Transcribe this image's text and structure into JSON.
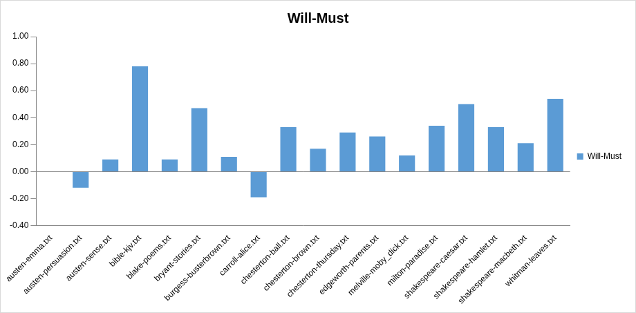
{
  "chart_data": {
    "type": "bar",
    "title": "Will-Must",
    "categories": [
      "austen-emma.txt",
      "austen-persuasion.txt",
      "austen-sense.txt",
      "bible-kjv.txt",
      "blake-poems.txt",
      "bryant-stories.txt",
      "burgess-busterbrown.txt",
      "carroll-alice.txt",
      "chesterton-ball.txt",
      "chesterton-brown.txt",
      "chesterton-thursday.txt",
      "edgeworth-parents.txt",
      "melville-moby_dick.txt",
      "milton-paradise.txt",
      "shakespeare-caesar.txt",
      "shakespeare-hamlet.txt",
      "shakespeare-macbeth.txt",
      "whitman-leaves.txt"
    ],
    "series": [
      {
        "name": "Will-Must",
        "color": "#5b9bd5",
        "values": [
          0.0,
          -0.12,
          0.09,
          0.78,
          0.09,
          0.47,
          0.11,
          -0.19,
          0.33,
          0.17,
          0.29,
          0.26,
          0.12,
          0.34,
          0.5,
          0.33,
          0.21,
          0.54
        ]
      }
    ],
    "ylim": [
      -0.4,
      1.0
    ],
    "yticks": [
      {
        "value": -0.4,
        "label": "-0.40"
      },
      {
        "value": -0.2,
        "label": "-0.20"
      },
      {
        "value": 0,
        "label": "0.00"
      },
      {
        "value": 0.2,
        "label": "0.20"
      },
      {
        "value": 0.4,
        "label": "0.40"
      },
      {
        "value": 0.6,
        "label": "0.60"
      },
      {
        "value": 0.8,
        "label": "0.80"
      },
      {
        "value": 1.0,
        "label": "1.00"
      }
    ],
    "grid": false,
    "legend": "right"
  }
}
